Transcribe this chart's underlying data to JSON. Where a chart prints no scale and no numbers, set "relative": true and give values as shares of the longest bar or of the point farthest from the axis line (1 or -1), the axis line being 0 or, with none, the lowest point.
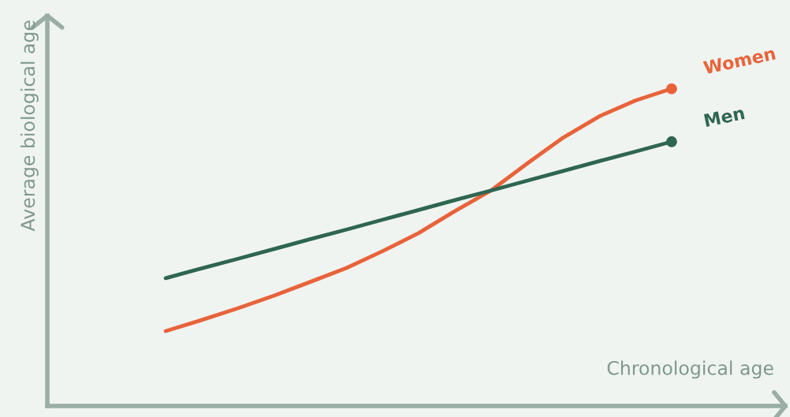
{
  "chart_data": {
    "type": "line",
    "relative": true,
    "xlabel": "Chronological age",
    "annotations": [
      "Average biological age"
    ],
    "line_style": "solid",
    "legend": false,
    "categories": [
      null,
      null,
      null,
      null,
      null,
      null,
      null,
      null,
      null,
      null,
      null,
      null,
      null,
      null,
      null
    ],
    "series": [
      {
        "name": "Women",
        "color": "#e8633a",
        "values": [
          0.236,
          0.271,
          0.308,
          0.348,
          0.391,
          0.435,
          0.488,
          0.545,
          0.614,
          0.679,
          0.764,
          0.846,
          0.913,
          0.963,
          1.0
        ]
      },
      {
        "name": "Men",
        "color": "#2e6650",
        "values": [
          0.403,
          0.434,
          0.464,
          0.495,
          0.526,
          0.556,
          0.587,
          0.618,
          0.649,
          0.679,
          0.71,
          0.741,
          0.772,
          0.802,
          0.833
        ]
      }
    ]
  }
}
